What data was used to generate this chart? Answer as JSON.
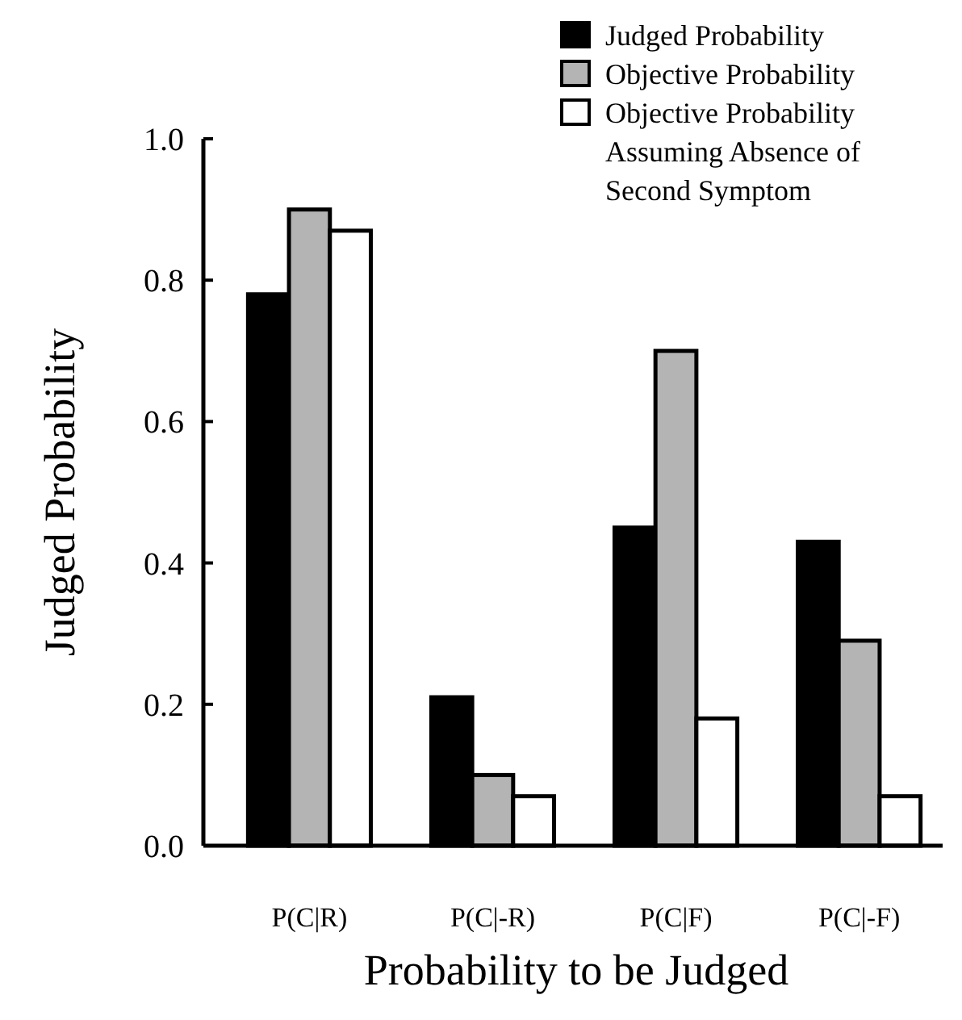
{
  "chart_data": {
    "type": "bar",
    "xlabel": "Probability to be Judged",
    "ylabel": "Judged Probability",
    "categories": [
      "P(C|R)",
      "P(C|-R)",
      "P(C|F)",
      "P(C|-F)"
    ],
    "series": [
      {
        "name": "Judged Probability",
        "color": "#000000",
        "values": [
          0.78,
          0.21,
          0.45,
          0.43
        ]
      },
      {
        "name": "Objective Probability",
        "color": "#b4b4b4",
        "values": [
          0.9,
          0.1,
          0.7,
          0.29
        ]
      },
      {
        "name": "Objective Probability Assuming Absence of Second Symptom",
        "color": "#ffffff",
        "values": [
          0.87,
          0.07,
          0.18,
          0.07
        ]
      }
    ],
    "ylim": [
      0,
      1
    ],
    "yticks": [
      {
        "value": 0,
        "label": "0.0"
      },
      0.2,
      0.4,
      0.6,
      0.8,
      {
        "value": 1,
        "label": "1.0"
      }
    ],
    "grid": false,
    "legend": "top right"
  }
}
